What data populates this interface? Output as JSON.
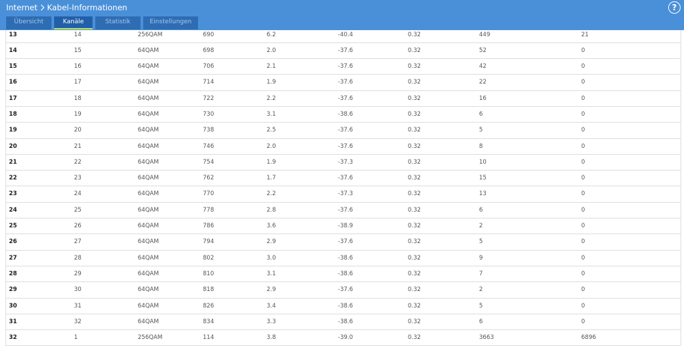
{
  "header": {
    "breadcrumb": [
      "Internet",
      "Kabel-Informationen"
    ],
    "help": "?",
    "tabs": [
      "Übersicht",
      "Kanäle",
      "Statistik",
      "Einstellungen"
    ],
    "active_tab": 1
  },
  "table": {
    "rows": [
      [
        "13",
        "14",
        "256QAM",
        "690",
        "6.2",
        "-40.4",
        "0.32",
        "449",
        "21"
      ],
      [
        "14",
        "15",
        "64QAM",
        "698",
        "2.0",
        "-37.6",
        "0.32",
        "52",
        "0"
      ],
      [
        "15",
        "16",
        "64QAM",
        "706",
        "2.1",
        "-37.6",
        "0.32",
        "42",
        "0"
      ],
      [
        "16",
        "17",
        "64QAM",
        "714",
        "1.9",
        "-37.6",
        "0.32",
        "22",
        "0"
      ],
      [
        "17",
        "18",
        "64QAM",
        "722",
        "2.2",
        "-37.6",
        "0.32",
        "16",
        "0"
      ],
      [
        "18",
        "19",
        "64QAM",
        "730",
        "3.1",
        "-38.6",
        "0.32",
        "6",
        "0"
      ],
      [
        "19",
        "20",
        "64QAM",
        "738",
        "2.5",
        "-37.6",
        "0.32",
        "5",
        "0"
      ],
      [
        "20",
        "21",
        "64QAM",
        "746",
        "2.0",
        "-37.6",
        "0.32",
        "8",
        "0"
      ],
      [
        "21",
        "22",
        "64QAM",
        "754",
        "1.9",
        "-37.3",
        "0.32",
        "10",
        "0"
      ],
      [
        "22",
        "23",
        "64QAM",
        "762",
        "1.7",
        "-37.6",
        "0.32",
        "15",
        "0"
      ],
      [
        "23",
        "24",
        "64QAM",
        "770",
        "2.2",
        "-37.3",
        "0.32",
        "13",
        "0"
      ],
      [
        "24",
        "25",
        "64QAM",
        "778",
        "2.8",
        "-37.6",
        "0.32",
        "6",
        "0"
      ],
      [
        "25",
        "26",
        "64QAM",
        "786",
        "3.6",
        "-38.9",
        "0.32",
        "2",
        "0"
      ],
      [
        "26",
        "27",
        "64QAM",
        "794",
        "2.9",
        "-37.6",
        "0.32",
        "5",
        "0"
      ],
      [
        "27",
        "28",
        "64QAM",
        "802",
        "3.0",
        "-38.6",
        "0.32",
        "9",
        "0"
      ],
      [
        "28",
        "29",
        "64QAM",
        "810",
        "3.1",
        "-38.6",
        "0.32",
        "7",
        "0"
      ],
      [
        "29",
        "30",
        "64QAM",
        "818",
        "2.9",
        "-37.6",
        "0.32",
        "2",
        "0"
      ],
      [
        "30",
        "31",
        "64QAM",
        "826",
        "3.4",
        "-38.6",
        "0.32",
        "5",
        "0"
      ],
      [
        "31",
        "32",
        "64QAM",
        "834",
        "3.3",
        "-38.6",
        "0.32",
        "6",
        "0"
      ],
      [
        "32",
        "1",
        "256QAM",
        "114",
        "3.8",
        "-39.0",
        "0.32",
        "3663",
        "6896"
      ]
    ]
  }
}
